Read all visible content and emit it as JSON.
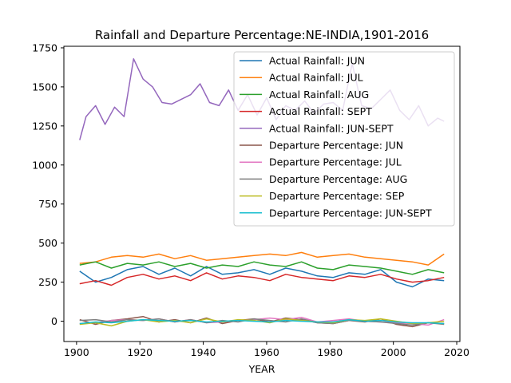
{
  "chart_data": {
    "type": "line",
    "title": "Rainfall and Departure Percentage:NE-INDIA,1901-2016",
    "xlabel": "YEAR",
    "ylabel": "",
    "xlim": [
      1896,
      2021
    ],
    "ylim": [
      -130,
      1760
    ],
    "xticks": [
      1900,
      1920,
      1940,
      1960,
      1980,
      2000,
      2020
    ],
    "yticks": [
      0,
      250,
      500,
      750,
      1000,
      1250,
      1500,
      1750
    ],
    "grid": false,
    "legend_position": "upper right",
    "series": [
      {
        "name": "Actual Rainfall: JUN",
        "color": "#1f77b4",
        "x": [
          1901,
          1906,
          1911,
          1916,
          1921,
          1926,
          1931,
          1936,
          1941,
          1946,
          1951,
          1956,
          1961,
          1966,
          1971,
          1976,
          1981,
          1986,
          1991,
          1996,
          2001,
          2006,
          2011,
          2016
        ],
        "y": [
          320,
          250,
          280,
          330,
          350,
          300,
          340,
          290,
          350,
          300,
          310,
          330,
          300,
          340,
          320,
          290,
          280,
          310,
          300,
          330,
          250,
          220,
          270,
          260
        ]
      },
      {
        "name": "Actual Rainfall: JUL",
        "color": "#ff7f0e",
        "x": [
          1901,
          1906,
          1911,
          1916,
          1921,
          1926,
          1931,
          1936,
          1941,
          1946,
          1951,
          1956,
          1961,
          1966,
          1971,
          1976,
          1981,
          1986,
          1991,
          1996,
          2001,
          2006,
          2011,
          2016
        ],
        "y": [
          370,
          380,
          410,
          420,
          410,
          430,
          400,
          420,
          390,
          400,
          410,
          420,
          430,
          420,
          440,
          410,
          420,
          430,
          410,
          400,
          390,
          380,
          360,
          430
        ]
      },
      {
        "name": "Actual Rainfall: AUG",
        "color": "#2ca02c",
        "x": [
          1901,
          1906,
          1911,
          1916,
          1921,
          1926,
          1931,
          1936,
          1941,
          1946,
          1951,
          1956,
          1961,
          1966,
          1971,
          1976,
          1981,
          1986,
          1991,
          1996,
          2001,
          2006,
          2011,
          2016
        ],
        "y": [
          360,
          380,
          340,
          370,
          360,
          380,
          350,
          370,
          340,
          360,
          350,
          380,
          360,
          350,
          380,
          340,
          330,
          360,
          350,
          340,
          320,
          300,
          330,
          310
        ]
      },
      {
        "name": "Actual Rainfall: SEPT",
        "color": "#d62728",
        "x": [
          1901,
          1906,
          1911,
          1916,
          1921,
          1926,
          1931,
          1936,
          1941,
          1946,
          1951,
          1956,
          1961,
          1966,
          1971,
          1976,
          1981,
          1986,
          1991,
          1996,
          2001,
          2006,
          2011,
          2016
        ],
        "y": [
          240,
          260,
          230,
          280,
          300,
          270,
          290,
          260,
          310,
          270,
          290,
          280,
          260,
          300,
          280,
          270,
          260,
          290,
          280,
          300,
          270,
          250,
          260,
          280
        ]
      },
      {
        "name": "Actual Rainfall: JUN-SEPT",
        "color": "#9467bd",
        "x": [
          1901,
          1903,
          1906,
          1909,
          1912,
          1915,
          1918,
          1921,
          1924,
          1927,
          1930,
          1933,
          1936,
          1939,
          1942,
          1945,
          1948,
          1951,
          1954,
          1957,
          1960,
          1963,
          1966,
          1969,
          1972,
          1975,
          1978,
          1981,
          1984,
          1987,
          1990,
          1993,
          1996,
          1999,
          2002,
          2005,
          2008,
          2011,
          2014,
          2016
        ],
        "y": [
          1160,
          1310,
          1380,
          1260,
          1370,
          1310,
          1680,
          1550,
          1500,
          1400,
          1390,
          1420,
          1450,
          1520,
          1400,
          1380,
          1480,
          1350,
          1450,
          1320,
          1430,
          1290,
          1380,
          1350,
          1410,
          1330,
          1390,
          1400,
          1350,
          1650,
          1380,
          1360,
          1420,
          1480,
          1350,
          1290,
          1380,
          1250,
          1300,
          1280
        ]
      },
      {
        "name": "Departure Percentage: JUN",
        "color": "#8c564b",
        "x": [
          1901,
          1906,
          1911,
          1916,
          1921,
          1926,
          1931,
          1936,
          1941,
          1946,
          1951,
          1956,
          1961,
          1966,
          1971,
          1976,
          1981,
          1986,
          1991,
          1996,
          2001,
          2006,
          2011,
          2016
        ],
        "y": [
          10,
          -20,
          5,
          15,
          30,
          -5,
          10,
          -10,
          20,
          -15,
          5,
          15,
          -5,
          20,
          10,
          -10,
          -15,
          5,
          -5,
          15,
          -20,
          -35,
          -10,
          -15
        ]
      },
      {
        "name": "Departure Percentage: JUL",
        "color": "#e377c2",
        "x": [
          1901,
          1906,
          1911,
          1916,
          1921,
          1926,
          1931,
          1936,
          1941,
          1946,
          1951,
          1956,
          1961,
          1966,
          1971,
          1976,
          1981,
          1986,
          1991,
          1996,
          2001,
          2006,
          2011,
          2016
        ],
        "y": [
          -15,
          -10,
          5,
          10,
          5,
          15,
          -5,
          10,
          -10,
          -5,
          5,
          10,
          20,
          10,
          25,
          -5,
          5,
          15,
          0,
          -5,
          -10,
          -15,
          -25,
          10
        ]
      },
      {
        "name": "Departure Percentage: AUG",
        "color": "#7f7f7f",
        "x": [
          1901,
          1906,
          1911,
          1916,
          1921,
          1926,
          1931,
          1936,
          1941,
          1946,
          1951,
          1956,
          1961,
          1966,
          1971,
          1976,
          1981,
          1986,
          1991,
          1996,
          2001,
          2006,
          2011,
          2016
        ],
        "y": [
          5,
          10,
          -5,
          10,
          5,
          15,
          -5,
          10,
          -10,
          5,
          -5,
          15,
          5,
          -5,
          15,
          -10,
          -15,
          5,
          0,
          -5,
          -15,
          -25,
          -10,
          -20
        ]
      },
      {
        "name": "Departure Percentage: SEP",
        "color": "#bcbd22",
        "x": [
          1901,
          1906,
          1911,
          1916,
          1921,
          1926,
          1931,
          1936,
          1941,
          1946,
          1951,
          1956,
          1961,
          1966,
          1971,
          1976,
          1981,
          1986,
          1991,
          1996,
          2001,
          2006,
          2011,
          2016
        ],
        "y": [
          -20,
          -10,
          -30,
          0,
          10,
          -5,
          5,
          -10,
          15,
          -5,
          10,
          5,
          -10,
          15,
          5,
          -5,
          -10,
          10,
          5,
          15,
          0,
          -15,
          -10,
          0
        ]
      },
      {
        "name": "Departure Percentage: JUN-SEPT",
        "color": "#17becf",
        "x": [
          1901,
          1906,
          1911,
          1916,
          1921,
          1926,
          1931,
          1936,
          1941,
          1946,
          1951,
          1956,
          1961,
          1966,
          1971,
          1976,
          1981,
          1986,
          1991,
          1996,
          2001,
          2006,
          2011,
          2016
        ],
        "y": [
          -15,
          -5,
          -10,
          0,
          10,
          5,
          0,
          5,
          -5,
          0,
          5,
          0,
          -5,
          5,
          0,
          -5,
          -5,
          10,
          0,
          5,
          -5,
          -10,
          -10,
          -15
        ]
      }
    ]
  }
}
